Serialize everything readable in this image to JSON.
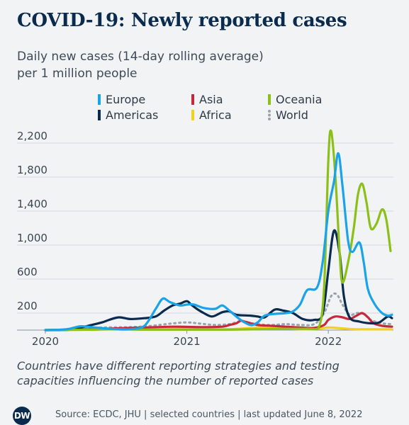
{
  "header": {
    "title": "COVID-19: Newly reported cases",
    "subtitle_line1": "Daily new cases (14-day rolling average)",
    "subtitle_line2": "per 1 million people"
  },
  "legend": [
    {
      "label": "Europe",
      "color": "#1aa3e8",
      "style": "solid"
    },
    {
      "label": "Americas",
      "color": "#0a2b4e",
      "style": "solid"
    },
    {
      "label": "Asia",
      "color": "#c8283b",
      "style": "solid"
    },
    {
      "label": "Africa",
      "color": "#f2d01e",
      "style": "solid"
    },
    {
      "label": "Oceania",
      "color": "#8cc019",
      "style": "solid"
    },
    {
      "label": "World",
      "color": "#9aa3ad",
      "style": "dotted"
    }
  ],
  "note_line1": "Countries have different reporting strategies and testing",
  "note_line2": "capacities influencing the number of reported cases",
  "footer": {
    "logo_text": "DW",
    "source": "Source: ECDC, JHU | selected countries | last updated June 8, 2022"
  },
  "chart_data": {
    "type": "line",
    "title": "COVID-19: Newly reported cases",
    "ylabel": "Daily new cases (14-day rolling average) per 1 million people",
    "xlim": [
      2020.0,
      2022.45
    ],
    "ylim": [
      0,
      2300
    ],
    "yticks": [
      200,
      600,
      1000,
      1400,
      1800,
      2200
    ],
    "ytick_labels": [
      "200",
      "600",
      "1,000",
      "1,400",
      "1,800",
      "2,200"
    ],
    "xticks": [
      2020,
      2021,
      2022
    ],
    "xtick_labels": [
      "2020",
      "2021",
      "2022"
    ],
    "grid": "horizontal",
    "legend_position": "top",
    "series": [
      {
        "name": "Europe",
        "color": "#1aa3e8",
        "points": [
          [
            2020.0,
            0
          ],
          [
            2020.15,
            10
          ],
          [
            2020.25,
            45
          ],
          [
            2020.35,
            30
          ],
          [
            2020.5,
            10
          ],
          [
            2020.6,
            10
          ],
          [
            2020.7,
            50
          ],
          [
            2020.78,
            250
          ],
          [
            2020.83,
            370
          ],
          [
            2020.88,
            330
          ],
          [
            2020.95,
            290
          ],
          [
            2021.0,
            300
          ],
          [
            2021.05,
            300
          ],
          [
            2021.12,
            260
          ],
          [
            2021.2,
            250
          ],
          [
            2021.25,
            290
          ],
          [
            2021.3,
            230
          ],
          [
            2021.38,
            120
          ],
          [
            2021.45,
            60
          ],
          [
            2021.5,
            90
          ],
          [
            2021.55,
            170
          ],
          [
            2021.62,
            190
          ],
          [
            2021.7,
            200
          ],
          [
            2021.75,
            220
          ],
          [
            2021.8,
            300
          ],
          [
            2021.85,
            470
          ],
          [
            2021.92,
            500
          ],
          [
            2021.96,
            800
          ],
          [
            2022.0,
            1400
          ],
          [
            2022.04,
            1750
          ],
          [
            2022.07,
            2080
          ],
          [
            2022.1,
            1700
          ],
          [
            2022.14,
            1050
          ],
          [
            2022.17,
            920
          ],
          [
            2022.22,
            1030
          ],
          [
            2022.25,
            800
          ],
          [
            2022.28,
            480
          ],
          [
            2022.33,
            300
          ],
          [
            2022.38,
            200
          ],
          [
            2022.42,
            170
          ],
          [
            2022.45,
            180
          ]
        ]
      },
      {
        "name": "Americas",
        "color": "#0a2b4e",
        "points": [
          [
            2020.0,
            0
          ],
          [
            2020.1,
            0
          ],
          [
            2020.2,
            10
          ],
          [
            2020.3,
            50
          ],
          [
            2020.4,
            90
          ],
          [
            2020.45,
            120
          ],
          [
            2020.52,
            150
          ],
          [
            2020.6,
            130
          ],
          [
            2020.7,
            140
          ],
          [
            2020.78,
            160
          ],
          [
            2020.84,
            230
          ],
          [
            2020.9,
            290
          ],
          [
            2020.95,
            310
          ],
          [
            2021.0,
            340
          ],
          [
            2021.03,
            300
          ],
          [
            2021.07,
            250
          ],
          [
            2021.12,
            200
          ],
          [
            2021.18,
            160
          ],
          [
            2021.25,
            210
          ],
          [
            2021.3,
            220
          ],
          [
            2021.35,
            180
          ],
          [
            2021.45,
            170
          ],
          [
            2021.5,
            160
          ],
          [
            2021.55,
            150
          ],
          [
            2021.62,
            240
          ],
          [
            2021.68,
            230
          ],
          [
            2021.75,
            200
          ],
          [
            2021.82,
            130
          ],
          [
            2021.9,
            120
          ],
          [
            2021.96,
            190
          ],
          [
            2022.0,
            700
          ],
          [
            2022.04,
            1170
          ],
          [
            2022.08,
            900
          ],
          [
            2022.11,
            400
          ],
          [
            2022.15,
            150
          ],
          [
            2022.22,
            100
          ],
          [
            2022.3,
            80
          ],
          [
            2022.36,
            90
          ],
          [
            2022.42,
            160
          ],
          [
            2022.45,
            140
          ]
        ]
      },
      {
        "name": "Asia",
        "color": "#c8283b",
        "points": [
          [
            2020.0,
            0
          ],
          [
            2020.3,
            10
          ],
          [
            2020.5,
            20
          ],
          [
            2020.7,
            30
          ],
          [
            2020.9,
            40
          ],
          [
            2021.1,
            35
          ],
          [
            2021.25,
            40
          ],
          [
            2021.3,
            60
          ],
          [
            2021.35,
            80
          ],
          [
            2021.38,
            110
          ],
          [
            2021.42,
            95
          ],
          [
            2021.5,
            60
          ],
          [
            2021.6,
            50
          ],
          [
            2021.7,
            40
          ],
          [
            2021.8,
            30
          ],
          [
            2021.9,
            25
          ],
          [
            2021.97,
            60
          ],
          [
            2022.0,
            120
          ],
          [
            2022.05,
            160
          ],
          [
            2022.1,
            150
          ],
          [
            2022.15,
            130
          ],
          [
            2022.2,
            170
          ],
          [
            2022.24,
            200
          ],
          [
            2022.28,
            150
          ],
          [
            2022.32,
            80
          ],
          [
            2022.38,
            50
          ],
          [
            2022.45,
            40
          ]
        ]
      },
      {
        "name": "Africa",
        "color": "#f2d01e",
        "points": [
          [
            2020.0,
            0
          ],
          [
            2020.3,
            5
          ],
          [
            2020.5,
            15
          ],
          [
            2020.7,
            10
          ],
          [
            2020.9,
            15
          ],
          [
            2021.0,
            25
          ],
          [
            2021.1,
            15
          ],
          [
            2021.3,
            10
          ],
          [
            2021.5,
            30
          ],
          [
            2021.6,
            35
          ],
          [
            2021.7,
            20
          ],
          [
            2021.8,
            10
          ],
          [
            2021.9,
            10
          ],
          [
            2022.0,
            30
          ],
          [
            2022.1,
            20
          ],
          [
            2022.2,
            10
          ],
          [
            2022.45,
            10
          ]
        ]
      },
      {
        "name": "Oceania",
        "color": "#8cc019",
        "points": [
          [
            2020.0,
            0
          ],
          [
            2020.3,
            5
          ],
          [
            2020.5,
            10
          ],
          [
            2020.7,
            5
          ],
          [
            2020.9,
            5
          ],
          [
            2021.1,
            5
          ],
          [
            2021.3,
            5
          ],
          [
            2021.5,
            10
          ],
          [
            2021.7,
            15
          ],
          [
            2021.85,
            15
          ],
          [
            2021.93,
            20
          ],
          [
            2021.97,
            500
          ],
          [
            2022.0,
            2000
          ],
          [
            2022.02,
            2340
          ],
          [
            2022.05,
            1800
          ],
          [
            2022.08,
            900
          ],
          [
            2022.1,
            560
          ],
          [
            2022.14,
            800
          ],
          [
            2022.18,
            1200
          ],
          [
            2022.21,
            1600
          ],
          [
            2022.24,
            1720
          ],
          [
            2022.27,
            1500
          ],
          [
            2022.3,
            1200
          ],
          [
            2022.34,
            1250
          ],
          [
            2022.38,
            1420
          ],
          [
            2022.41,
            1300
          ],
          [
            2022.44,
            930
          ]
        ]
      },
      {
        "name": "World",
        "color": "#9aa3ad",
        "points": [
          [
            2020.0,
            0
          ],
          [
            2020.2,
            10
          ],
          [
            2020.4,
            30
          ],
          [
            2020.6,
            35
          ],
          [
            2020.75,
            50
          ],
          [
            2020.88,
            75
          ],
          [
            2021.0,
            90
          ],
          [
            2021.1,
            75
          ],
          [
            2021.2,
            60
          ],
          [
            2021.3,
            70
          ],
          [
            2021.38,
            100
          ],
          [
            2021.5,
            70
          ],
          [
            2021.6,
            60
          ],
          [
            2021.7,
            70
          ],
          [
            2021.8,
            60
          ],
          [
            2021.9,
            70
          ],
          [
            2021.97,
            200
          ],
          [
            2022.02,
            400
          ],
          [
            2022.06,
            420
          ],
          [
            2022.1,
            300
          ],
          [
            2022.15,
            180
          ],
          [
            2022.2,
            200
          ],
          [
            2022.25,
            190
          ],
          [
            2022.3,
            120
          ],
          [
            2022.38,
            80
          ],
          [
            2022.45,
            70
          ]
        ]
      }
    ]
  }
}
